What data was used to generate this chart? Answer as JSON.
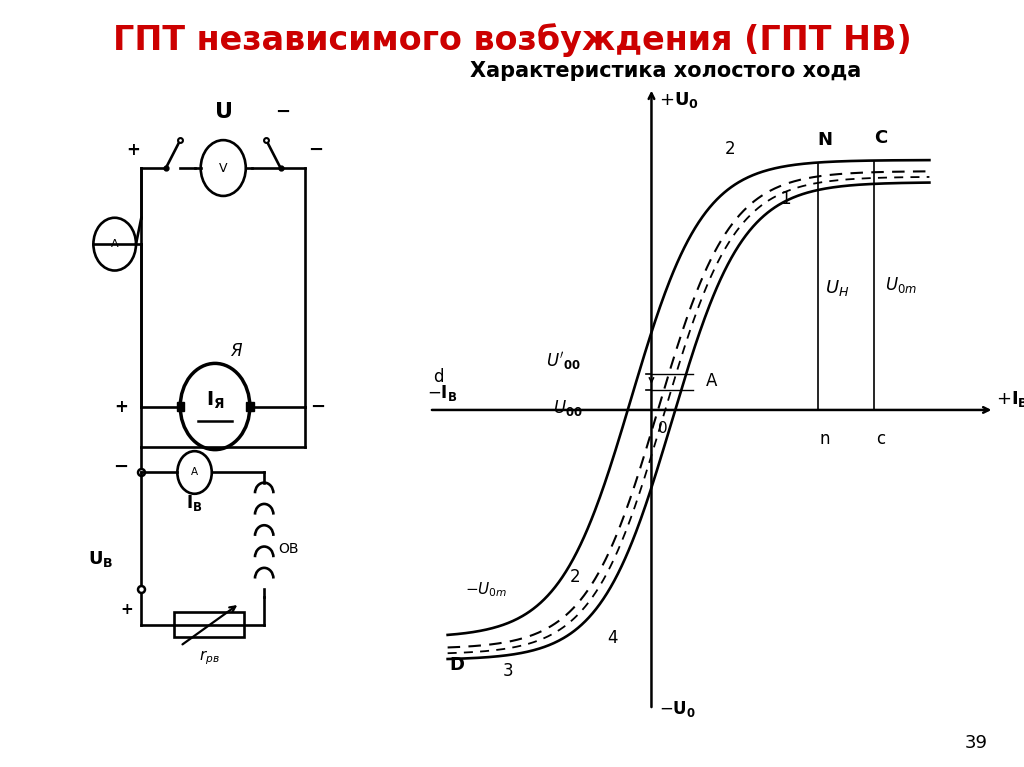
{
  "title": "ГПТ независимого возбуждения (ГПТ НВ)",
  "title_color": "#cc0000",
  "title_fontsize": 24,
  "subtitle": "Характеристика холостого хода",
  "subtitle_fontsize": 15,
  "background_color": "#ffffff",
  "page_number": "39"
}
